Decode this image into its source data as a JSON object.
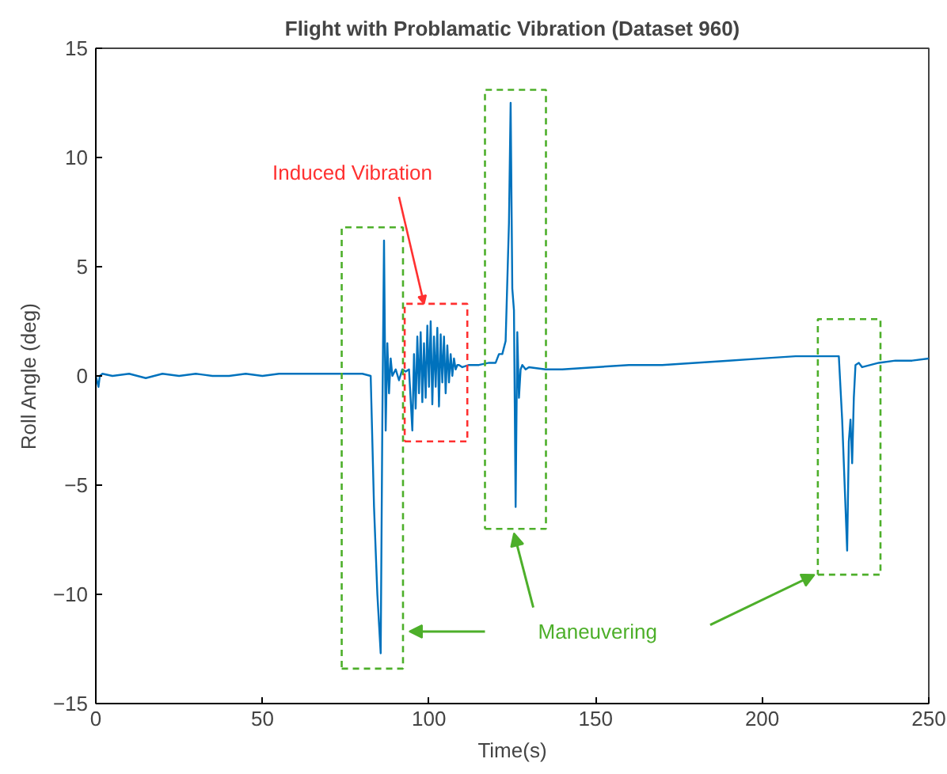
{
  "chart_data": {
    "type": "line",
    "title": "Flight with Problamatic Vibration (Dataset 960)",
    "xlabel": "Time(s)",
    "ylabel": "Roll Angle (deg)",
    "xlim": [
      0,
      250
    ],
    "ylim": [
      -15,
      15
    ],
    "xticks": [
      0,
      50,
      100,
      150,
      200,
      250
    ],
    "yticks": [
      -15,
      -10,
      -5,
      0,
      5,
      10,
      15
    ],
    "grid": false,
    "series": [
      {
        "color": "#0072bd",
        "x": [
          0,
          0.8,
          1.2,
          2,
          5,
          10,
          15,
          20,
          25,
          30,
          35,
          40,
          45,
          50,
          55,
          60,
          65,
          70,
          75,
          80,
          82.5,
          83.5,
          84.5,
          85.5,
          86,
          86.5,
          87,
          87.5,
          88,
          88.5,
          89,
          90,
          91,
          92,
          93,
          94,
          95,
          95.5,
          96,
          96.5,
          97,
          97.5,
          98,
          98.5,
          99,
          99.5,
          100,
          100.5,
          101,
          101.5,
          102,
          102.5,
          103,
          103.5,
          104,
          104.5,
          105,
          105.5,
          106,
          106.5,
          107,
          107.5,
          108,
          108.5,
          109,
          110,
          112,
          115,
          118,
          120,
          121,
          122,
          123,
          124,
          124.5,
          125,
          125.5,
          126,
          126.5,
          127,
          127.5,
          128,
          129,
          130,
          135,
          140,
          150,
          160,
          170,
          180,
          190,
          200,
          210,
          215,
          220,
          222,
          223,
          224,
          225,
          225.5,
          226,
          226.5,
          227,
          227.5,
          228,
          229,
          230,
          235,
          240,
          245,
          250
        ],
        "values": [
          0,
          -0.5,
          0,
          0.1,
          0,
          0.1,
          -0.1,
          0.1,
          0,
          0.1,
          0,
          0,
          0.1,
          0,
          0.1,
          0.1,
          0.1,
          0.1,
          0.1,
          0.1,
          0,
          -6,
          -10,
          -12.7,
          -2,
          6.2,
          -2.5,
          1.5,
          -0.8,
          0.8,
          0,
          0.3,
          -0.2,
          0.3,
          0.2,
          0.3,
          -2.5,
          1,
          -1.5,
          1.8,
          -0.8,
          2,
          -1.2,
          1.5,
          -1,
          2.3,
          -0.5,
          2.5,
          -1.3,
          1.8,
          -0.5,
          2.2,
          -1.4,
          1.9,
          -0.3,
          1.8,
          -0.8,
          1.4,
          -0.3,
          1,
          0,
          0.8,
          0.3,
          0.5,
          0.5,
          0.4,
          0.5,
          0.5,
          0.6,
          0.6,
          1,
          1,
          1.6,
          7,
          12.5,
          4,
          3,
          -6,
          2,
          -1,
          0.3,
          0.5,
          0.3,
          0.4,
          0.3,
          0.3,
          0.4,
          0.5,
          0.5,
          0.6,
          0.7,
          0.8,
          0.9,
          0.9,
          0.9,
          0.9,
          0.9,
          -2,
          -6,
          -8,
          -3,
          -2,
          -4,
          -1,
          0.5,
          0.6,
          0.4,
          0.6,
          0.7,
          0.7,
          0.8
        ]
      }
    ],
    "annotations": [
      "Induced Vibration",
      "Maneuvering"
    ]
  }
}
